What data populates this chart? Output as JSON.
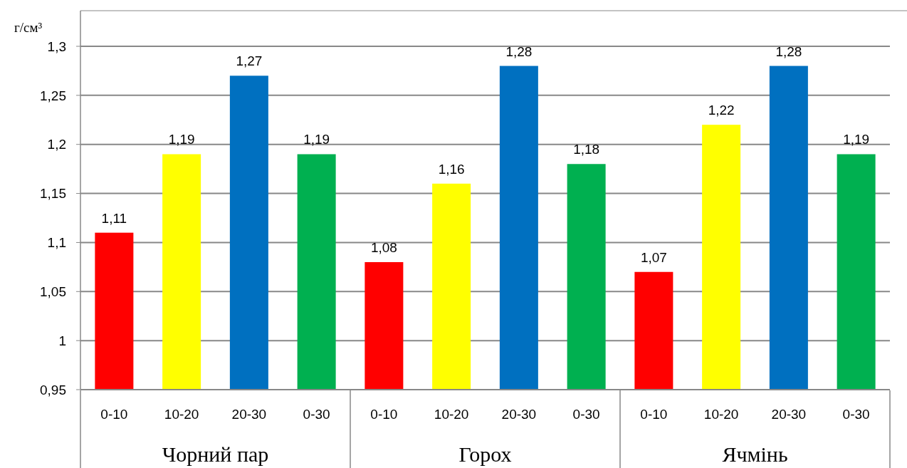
{
  "chart_data": {
    "type": "bar",
    "ylabel": "г/см³",
    "categories": [
      "0-10",
      "10-20",
      "20-30",
      "0-30",
      "0-10",
      "10-20",
      "20-30",
      "0-30",
      "0-10",
      "10-20",
      "20-30",
      "0-30"
    ],
    "values": [
      1.11,
      1.19,
      1.27,
      1.19,
      1.08,
      1.16,
      1.28,
      1.18,
      1.07,
      1.22,
      1.28,
      1.19
    ],
    "colors": [
      "#ff0000",
      "#ffff00",
      "#0070c0",
      "#00b050",
      "#ff0000",
      "#ffff00",
      "#0070c0",
      "#00b050",
      "#ff0000",
      "#ffff00",
      "#0070c0",
      "#00b050"
    ],
    "value_labels": [
      "1,11",
      "1,19",
      "1,27",
      "1,19",
      "1,08",
      "1,16",
      "1,28",
      "1,18",
      "1,07",
      "1,22",
      "1,28",
      "1,19"
    ],
    "ylim": [
      0.95,
      1.3
    ],
    "yticks": [
      {
        "value": 0.95,
        "label": "0,95"
      },
      {
        "value": 1,
        "label": "1"
      },
      {
        "value": 1.05,
        "label": "1,05"
      },
      {
        "value": 1.1,
        "label": "1,1"
      },
      {
        "value": 1.15,
        "label": "1,15"
      },
      {
        "value": 1.2,
        "label": "1,2"
      },
      {
        "value": 1.25,
        "label": "1,25"
      },
      {
        "value": 1.3,
        "label": "1,3"
      }
    ],
    "grid": "y",
    "annotations": [
      "Чорний пар",
      "Горох",
      "Ячмінь"
    ]
  }
}
